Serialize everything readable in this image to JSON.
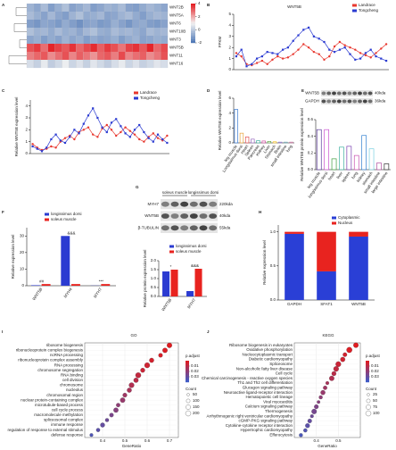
{
  "chart_data": [
    {
      "type": "heatmap",
      "panel": "A",
      "rows": [
        "WNT2B",
        "WNT5A",
        "WNT6",
        "WNT10B",
        "WNT3",
        "WNT5B",
        "WNT11",
        "WNT16"
      ],
      "values": [
        [
          -0.5,
          -0.8,
          -0.3,
          -1,
          -0.6,
          -0.2,
          -0.9,
          -0.7,
          -0.4,
          -1,
          -0.8,
          -0.5,
          -0.6,
          -0.3,
          -0.9,
          -1,
          -0.7,
          -0.4,
          -0.6,
          -0.8
        ],
        [
          -0.3,
          -0.6,
          -0.9,
          -0.4,
          -0.8,
          -1,
          -0.5,
          -0.2,
          -0.7,
          -0.6,
          -0.4,
          -0.9,
          -0.8,
          -0.5,
          -0.3,
          -0.7,
          -1,
          -0.6,
          -0.4,
          -0.5
        ],
        [
          -1,
          -1.2,
          -0.8,
          -0.9,
          -1.1,
          -0.7,
          -1,
          -1.3,
          -0.9,
          -0.8,
          -1.1,
          -1,
          -0.6,
          -0.9,
          -1.2,
          -0.8,
          -0.7,
          -1,
          -1.1,
          -0.9
        ],
        [
          -0.2,
          -0.5,
          -0.4,
          -0.7,
          -0.3,
          -0.6,
          -0.5,
          -0.8,
          -0.4,
          -0.2,
          -0.6,
          -0.7,
          -0.3,
          -0.5,
          -0.4,
          -0.6,
          -0.8,
          -0.3,
          -0.5,
          -0.4
        ],
        [
          -0.8,
          -0.6,
          -1,
          -0.7,
          -0.9,
          -0.5,
          -0.8,
          -0.6,
          -1,
          -0.7,
          -0.9,
          -0.8,
          -0.6,
          -1,
          -0.7,
          -0.5,
          -0.9,
          -0.8,
          -0.6,
          -0.7
        ],
        [
          3.2,
          3.5,
          2.8,
          3.8,
          3.4,
          3.1,
          3.6,
          2.9,
          3.3,
          3.7,
          3,
          3.5,
          3.2,
          2.7,
          3.4,
          3.6,
          3.1,
          3.8,
          2.9,
          3.3
        ],
        [
          2.6,
          2.9,
          3.1,
          2.4,
          2.8,
          3.2,
          2.5,
          3,
          2.7,
          2.3,
          2.9,
          3.1,
          2.6,
          3.3,
          2.5,
          2.8,
          3,
          2.4,
          2.7,
          3.2
        ],
        [
          0.5,
          0.2,
          0.8,
          0.1,
          0.4,
          0.9,
          0.3,
          0.6,
          0.2,
          0.7,
          0.4,
          0.1,
          0.5,
          0.8,
          0.3,
          0.6,
          0.2,
          0.4,
          0.7,
          0.5
        ]
      ],
      "colors": [
        "#4a74b4",
        "#f2f2f2",
        "#e3161c"
      ],
      "zlim": [
        -2,
        4
      ],
      "zticks": [
        -2,
        0,
        2,
        4
      ]
    },
    {
      "type": "line",
      "panel": "B",
      "title": "WNT5B",
      "ylabel": "FPKM",
      "categories": [
        null,
        null,
        null,
        null,
        null,
        null,
        null,
        null,
        null,
        null,
        null,
        null,
        null,
        null,
        null,
        null,
        null,
        null,
        null,
        null,
        null,
        null,
        null,
        null,
        null,
        null,
        null,
        null,
        null,
        null
      ],
      "series": [
        {
          "name": "Landrace",
          "color": "#e8382f",
          "values": [
            1.5,
            1.2,
            0.5,
            0.4,
            0.6,
            0.8,
            0.5,
            0.9,
            1.2,
            1,
            1.1,
            1.4,
            1.8,
            2.3,
            2,
            1.6,
            1.4,
            0.9,
            1.2,
            2.1,
            2.5,
            2.2,
            2,
            1.8,
            1.5,
            1.3,
            1.1,
            1.5,
            1.9,
            2.3
          ]
        },
        {
          "name": "Tongcheng",
          "color": "#2b3bd1",
          "values": [
            1.2,
            1.8,
            0.3,
            0.5,
            1,
            1.2,
            1.6,
            1.5,
            1.4,
            1.8,
            2,
            2.6,
            3.1,
            3.6,
            3.8,
            3,
            2.8,
            2.5,
            1.8,
            1.6,
            1.8,
            2,
            1.4,
            0.9,
            1,
            1.5,
            1.8,
            1.2,
            1,
            0.8
          ]
        }
      ],
      "ylim": [
        0,
        5
      ],
      "yticks": [
        0,
        1,
        2,
        3,
        4,
        5
      ]
    },
    {
      "type": "line",
      "panel": "C",
      "ylabel": "Relative WNT5B expression level",
      "categories": [
        null,
        null,
        null,
        null,
        null,
        null,
        null,
        null,
        null,
        null,
        null,
        null,
        null,
        null,
        null,
        null,
        null,
        null,
        null,
        null,
        null,
        null,
        null,
        null,
        null,
        null,
        null,
        null,
        null,
        null
      ],
      "series": [
        {
          "name": "Landrace",
          "color": "#e8382f",
          "values": [
            0.8,
            0.5,
            0.3,
            0.4,
            0.6,
            0.5,
            1,
            1.3,
            1.5,
            1.2,
            1.8,
            2,
            2.2,
            1.6,
            1.4,
            2.1,
            2.4,
            2,
            1.5,
            1.8,
            2.2,
            1.9,
            1.6,
            1.2,
            1,
            1.4,
            1.7,
            1.3,
            1.1,
            1.5
          ]
        },
        {
          "name": "Tongcheng",
          "color": "#2b3bd1",
          "values": [
            0.6,
            0.4,
            0.2,
            0.5,
            1.2,
            1.6,
            1.1,
            0.9,
            1.4,
            2,
            1.7,
            2.5,
            3.2,
            3.8,
            3,
            2.2,
            1.8,
            2.6,
            2.9,
            2.3,
            1.7,
            1.4,
            2,
            2.4,
            1.8,
            1.3,
            1,
            1.6,
            1.2,
            0.9
          ]
        }
      ],
      "ylim": [
        0,
        4.5
      ],
      "yticks": [
        0,
        1,
        2,
        3,
        4
      ]
    },
    {
      "type": "bar",
      "panel": "D",
      "ylabel": "Relative WNT5B expression level",
      "categories": [
        "leg muscle",
        "Longissimus dorsi",
        "Heart",
        "Spleen",
        "Pancreas",
        "Kidney",
        "Liver",
        "Stomach",
        "Brain",
        "small intestine",
        "lung"
      ],
      "values": [
        4.5,
        1.3,
        0.8,
        0.5,
        0.3,
        0.25,
        0.2,
        0.15,
        0.1,
        0.1,
        0.1
      ],
      "colors": [
        "#3a7bd5",
        "#e8a33a",
        "#e05050",
        "#9a6bc0",
        "#3fb0a0",
        "#d04e9e",
        "#6aa84f",
        "#f1c232",
        "#8e7cc3",
        "#76a5af",
        "#c27ba0"
      ],
      "ylim": [
        0,
        6
      ],
      "yticks": [
        0,
        2,
        4,
        6
      ]
    },
    {
      "type": "bar",
      "panel": "E",
      "ylabel": "Relative WNT5B protein expression level",
      "blot": {
        "rows": [
          {
            "name": "WNT5B",
            "size": "40kda"
          },
          {
            "name": "GAPDH",
            "size": "36kda"
          }
        ]
      },
      "categories": [
        "leg muscle",
        "longissimus dorsi",
        "heart",
        "liver",
        "spleen",
        "lung",
        "kidney",
        "stomach",
        "small intestine",
        "large intestine"
      ],
      "values": [
        0.48,
        0.48,
        0.13,
        0.27,
        0.28,
        0.17,
        0.41,
        0.25,
        0.08,
        0.07
      ],
      "colors": [
        "#5b3a9a",
        "#c94fd0",
        "#3f9e3f",
        "#3fb0a0",
        "#7a3fb0",
        "#c94fb0",
        "#2f7fcf",
        "#7ad0e0",
        "#b050a0",
        "#333333"
      ],
      "ylim": [
        0,
        0.6
      ],
      "yticks": [
        {
          "value": 0,
          "label": "0.0"
        },
        0.2,
        0.4,
        0.6
      ]
    },
    {
      "type": "bar",
      "panel": "F",
      "ylabel": "Relative expression level",
      "categories": [
        "WNT5B",
        "MYH4",
        "MYH7"
      ],
      "series": [
        {
          "name": "longissimus dorsi",
          "color": "#2b3bd1",
          "values": [
            0.3,
            30,
            0.1
          ]
        },
        {
          "name": "soleus muscle",
          "color": "#e8231f",
          "values": [
            1,
            1,
            1
          ]
        }
      ],
      "annotations": [
        "##",
        "&&&",
        "***"
      ],
      "ylim": [
        0,
        35
      ],
      "yticks": [
        0,
        10,
        20,
        30
      ]
    },
    {
      "type": "bar",
      "panel": "G",
      "ylabel": "Relative protein expression level",
      "blot": {
        "header": [
          "soleus muscle",
          "longissimus dorsi"
        ],
        "rows": [
          {
            "name": "MYH7",
            "size": "220kda"
          },
          {
            "name": "WNT5B",
            "size": "40kda"
          },
          {
            "name": "β-TUBULIN",
            "size": "55kda"
          }
        ]
      },
      "categories": [
        "WNT5B",
        "MYH7"
      ],
      "series": [
        {
          "name": "longissimus dorsi",
          "color": "#2b3bd1",
          "values": [
            1.4,
            0.3
          ]
        },
        {
          "name": "soleus muscle",
          "color": "#e8231f",
          "values": [
            1.5,
            1.55
          ]
        }
      ],
      "annotations": [
        "*",
        "&&&"
      ],
      "ylim": [
        0,
        2
      ],
      "yticks": [
        {
          "value": 0,
          "label": "0.0"
        },
        0.5,
        {
          "value": 1,
          "label": "1.0"
        },
        1.5,
        {
          "value": 2,
          "label": "2.0"
        }
      ]
    },
    {
      "type": "stacked_bar",
      "panel": "H",
      "ylabel": "Relative expression level",
      "categories": [
        "GAPDH",
        "SFAT1",
        "WNT5B"
      ],
      "series": [
        {
          "name": "Cytoplasmic",
          "color": "#2a3fd6",
          "values": [
            0.97,
            0.42,
            0.93
          ]
        },
        {
          "name": "Nucleus",
          "color": "#e8231f",
          "values": [
            0.03,
            0.58,
            0.07
          ]
        }
      ],
      "ylim": [
        0,
        1.1
      ],
      "yticks": [
        {
          "value": 0,
          "label": "0.0"
        },
        0.5,
        {
          "value": 1,
          "label": "1.0"
        }
      ]
    },
    {
      "type": "dot",
      "panel": "I",
      "title": "GO",
      "xlabel": "GeneRatio",
      "clabel": "p.adjust",
      "slabel": "Count",
      "categories": [
        "ribosome biogenesis",
        "ribonucleoprotein complex biogenesis",
        "ncRNA processing",
        "ribonucleoprotein complex assembly",
        "RNA processing",
        "chromosome segregation",
        "RNA binding",
        "cell division",
        "chromosome",
        "nucleolus",
        "chromosomal region",
        "nuclear protein-containing complex",
        "microtubule-based process",
        "cell cycle process",
        "macromolecule methylation",
        "spliceosomal complex",
        "immune response",
        "regulation of response to external stimulus",
        "defense response"
      ],
      "values": [
        0.7,
        0.68,
        0.66,
        0.62,
        0.6,
        0.58,
        0.56,
        0.55,
        0.53,
        0.52,
        0.5,
        0.49,
        0.47,
        0.46,
        0.44,
        0.42,
        0.4,
        0.38,
        0.35
      ],
      "counts": [
        180,
        170,
        120,
        150,
        200,
        140,
        210,
        160,
        190,
        150,
        130,
        170,
        110,
        160,
        120,
        90,
        140,
        100,
        80
      ],
      "p_adjust": [
        0.001,
        0.002,
        0.003,
        0.004,
        0.005,
        0.006,
        0.008,
        0.01,
        0.012,
        0.014,
        0.016,
        0.018,
        0.02,
        0.022,
        0.025,
        0.028,
        0.03,
        0.032,
        0.035
      ],
      "xlim": [
        0.32,
        0.74
      ],
      "xticks": [
        0.4,
        0.5,
        0.6,
        0.7
      ],
      "clim": [
        0,
        0.04
      ],
      "cticks": [
        0.01,
        0.02,
        0.03
      ],
      "count_ticks": [
        50,
        100,
        150,
        200
      ]
    },
    {
      "type": "dot",
      "panel": "J",
      "title": "KEGG",
      "xlabel": "GeneRatio",
      "clabel": "p.adjust",
      "slabel": "Count",
      "categories": [
        "Ribosome biogenesis in eukaryotes",
        "Oxidative phosphorylation",
        "Nucleocytoplasmic transport",
        "Diabetic cardiomyopathy",
        "Spliceosome",
        "Non-alcoholic fatty liver disease",
        "Cell cycle",
        "Chemical carcinogenesis - reactive oxygen species",
        "Th1 and Th2 cell differentiation",
        "Glucagon signaling pathway",
        "Neuroactive ligand-receptor interaction",
        "Hematopoietic cell lineage",
        "Viral myocarditis",
        "Calcium signaling pathway",
        "Thermogenesis",
        "Arrhythmogenic right ventricular cardiomyopathy",
        "cGMP-PKG signaling pathway",
        "Cytokine-cytokine receptor interaction",
        "Hypertrophic cardiomyopathy",
        "Efferocytosis"
      ],
      "values": [
        0.58,
        0.55,
        0.53,
        0.52,
        0.5,
        0.49,
        0.48,
        0.47,
        0.45,
        0.44,
        0.43,
        0.42,
        0.41,
        0.4,
        0.39,
        0.38,
        0.37,
        0.36,
        0.35,
        0.33
      ],
      "counts": [
        90,
        110,
        60,
        80,
        100,
        95,
        70,
        85,
        40,
        55,
        75,
        45,
        35,
        65,
        90,
        40,
        60,
        70,
        50,
        45
      ],
      "p_adjust": [
        0.001,
        0.002,
        0.004,
        0.005,
        0.006,
        0.008,
        0.01,
        0.012,
        0.014,
        0.016,
        0.018,
        0.02,
        0.022,
        0.024,
        0.026,
        0.028,
        0.03,
        0.032,
        0.034,
        0.036
      ],
      "xlim": [
        0.3,
        0.6
      ],
      "xticks": [
        0.4,
        0.5
      ],
      "clim": [
        0,
        0.04
      ],
      "cticks": [
        0.01,
        0.02,
        0.03
      ],
      "count_ticks": [
        25,
        50,
        75,
        100
      ]
    }
  ]
}
